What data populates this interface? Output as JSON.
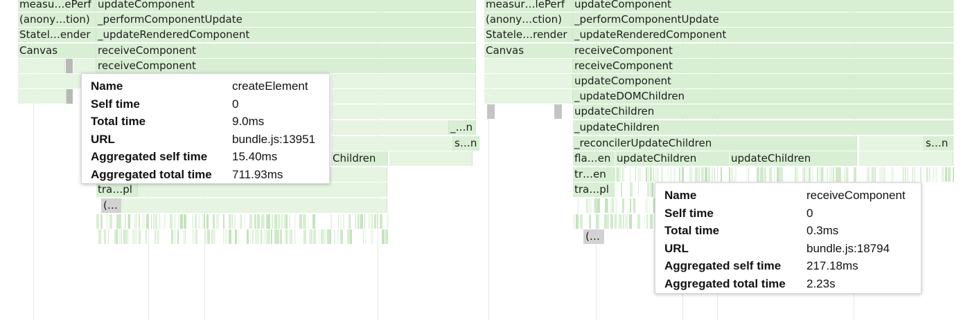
{
  "flamegraph": {
    "left_frames": {
      "measure_perf": "measu…ePerf",
      "update_component": "updateComponent",
      "anonymous": "(anony…tion)",
      "perform_component_update": "_performComponentUpdate",
      "stateless_render": "Statel…ender",
      "update_rendered_component": "_updateRenderedComponent",
      "canvas": "Canvas",
      "receive_component_1": "receiveComponent",
      "receive_component_2": "receiveComponent",
      "update_children_partial": "Children",
      "short_n_1": "_…n",
      "short_n_2": "s…n",
      "transaction_pl": "tra…pl",
      "anon_short": "(…"
    },
    "right_frames": {
      "measure_perf": "measur…lePerf",
      "update_component": "updateComponent",
      "anonymous": "(anony…ction)",
      "perform_component_update": "_performComponentUpdate",
      "stateless_render": "Statele…render",
      "update_rendered_component": "_updateRenderedComponent",
      "canvas": "Canvas",
      "receive_component_1": "receiveComponent",
      "receive_component_2": "receiveComponent",
      "update_component_2": "updateComponent",
      "update_dom_children": "_updateDOMChildren",
      "update_children_1": "updateChildren",
      "update_children_2": "_updateChildren",
      "reconciler_update_children": "_reconcilerUpdateChildren",
      "short_n": "s…n",
      "flatten": "fla…en",
      "update_children_3": "updateChildren",
      "update_children_4": "updateChildren",
      "tr_en": "tr…en",
      "transaction_pl": "tra…pl",
      "anon_short": "(…"
    }
  },
  "tooltip_left": {
    "rows": [
      {
        "key": "Name",
        "value": "createElement"
      },
      {
        "key": "Self time",
        "value": "0"
      },
      {
        "key": "Total time",
        "value": "9.0ms"
      },
      {
        "key": "URL",
        "value": "bundle.js:13951"
      },
      {
        "key": "Aggregated self time",
        "value": "15.40ms"
      },
      {
        "key": "Aggregated total time",
        "value": "711.93ms"
      }
    ]
  },
  "tooltip_right": {
    "rows": [
      {
        "key": "Name",
        "value": "receiveComponent"
      },
      {
        "key": "Self time",
        "value": "0"
      },
      {
        "key": "Total time",
        "value": "0.3ms"
      },
      {
        "key": "URL",
        "value": "bundle.js:18794"
      },
      {
        "key": "Aggregated self time",
        "value": "217.18ms"
      },
      {
        "key": "Aggregated total time",
        "value": "2.23s"
      }
    ]
  }
}
